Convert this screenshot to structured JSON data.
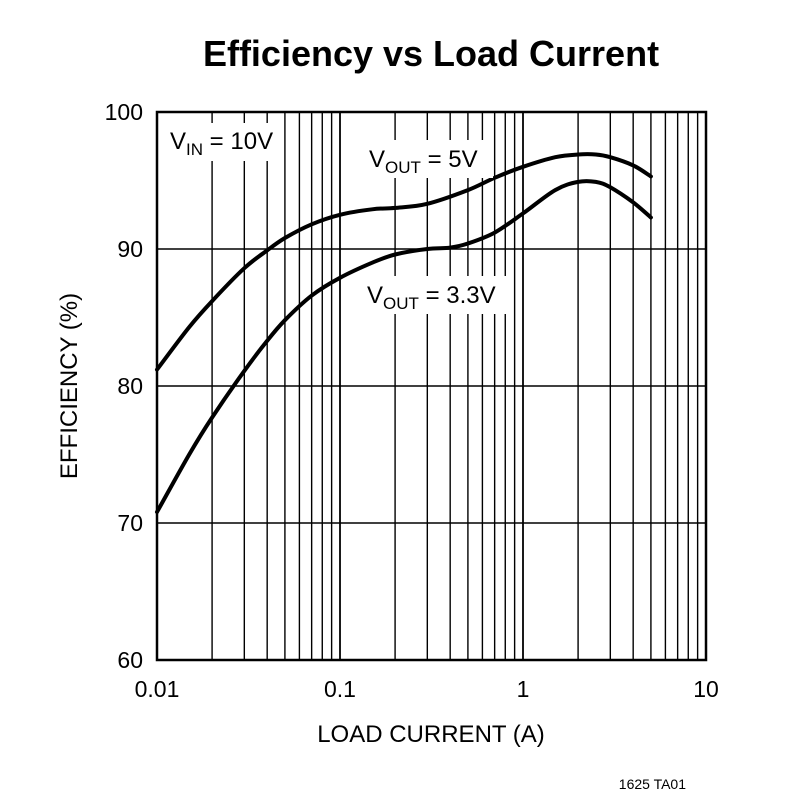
{
  "chart_data": {
    "type": "line",
    "title": "Efficiency vs Load Current",
    "xlabel": "LOAD CURRENT (A)",
    "ylabel": "EFFICIENCY (%)",
    "x_scale": "log",
    "xlim": [
      0.01,
      10
    ],
    "ylim": [
      60,
      100
    ],
    "x_ticks": [
      "0.01",
      "0.1",
      "1",
      "10"
    ],
    "y_ticks": [
      "60",
      "70",
      "80",
      "90",
      "100"
    ],
    "grid": true,
    "annotations": [
      {
        "main": "V",
        "sub": "IN",
        "rest": " = 10V"
      },
      {
        "main": "V",
        "sub": "OUT",
        "rest": " = 5V"
      },
      {
        "main": "V",
        "sub": "OUT",
        "rest": " = 3.3V"
      }
    ],
    "footnote": "1625 TA01",
    "series": [
      {
        "label": "VOUT = 5V",
        "x": [
          0.01,
          0.015,
          0.02,
          0.03,
          0.04,
          0.05,
          0.07,
          0.1,
          0.15,
          0.2,
          0.3,
          0.5,
          0.7,
          1,
          1.5,
          2,
          2.5,
          3,
          4,
          5
        ],
        "y": [
          81.2,
          84.3,
          86.2,
          88.6,
          89.9,
          90.8,
          91.8,
          92.5,
          92.9,
          93.0,
          93.3,
          94.3,
          95.2,
          96.0,
          96.7,
          96.9,
          96.9,
          96.7,
          96.1,
          95.3
        ]
      },
      {
        "label": "VOUT = 3.3V",
        "x": [
          0.01,
          0.015,
          0.02,
          0.03,
          0.04,
          0.05,
          0.07,
          0.1,
          0.15,
          0.2,
          0.3,
          0.4,
          0.5,
          0.7,
          1,
          1.5,
          2,
          2.5,
          3,
          4,
          5
        ],
        "y": [
          70.8,
          75.0,
          77.7,
          81.1,
          83.3,
          84.8,
          86.6,
          87.9,
          89.0,
          89.6,
          90.0,
          90.1,
          90.4,
          91.2,
          92.6,
          94.3,
          94.9,
          94.9,
          94.5,
          93.4,
          92.3
        ]
      }
    ]
  }
}
